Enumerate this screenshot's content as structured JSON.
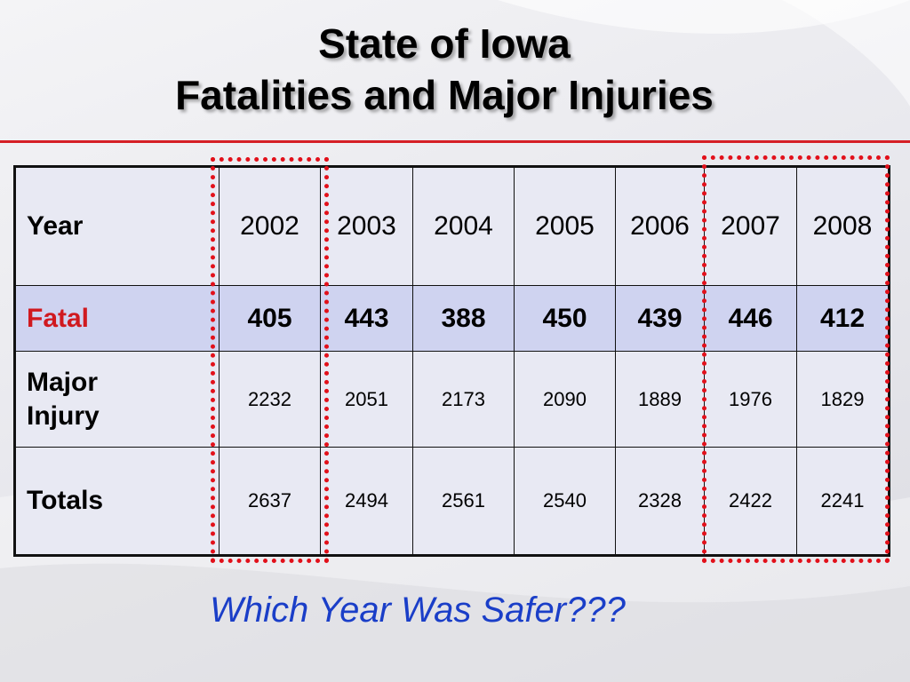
{
  "title": {
    "line1": "State of Iowa",
    "line2": "Fatalities and Major Injuries"
  },
  "table": {
    "header_label": "Year",
    "years": [
      "2002",
      "2003",
      "2004",
      "2005",
      "2006",
      "2007",
      "2008"
    ],
    "rows": {
      "fatal": {
        "label": "Fatal",
        "values": [
          "405",
          "443",
          "388",
          "450",
          "439",
          "446",
          "412"
        ]
      },
      "major_injury": {
        "label_line1": "Major",
        "label_line2": "Injury",
        "values": [
          "2232",
          "2051",
          "2173",
          "2090",
          "1889",
          "1976",
          "1829"
        ]
      },
      "totals": {
        "label": "Totals",
        "values": [
          "2637",
          "2494",
          "2561",
          "2540",
          "2328",
          "2422",
          "2241"
        ]
      }
    }
  },
  "question": "Which Year Was Safer???",
  "colors": {
    "accent_red": "#d0191f",
    "question_blue": "#1a3ec8",
    "highlight_row": "#cfd3f0",
    "cell_background": "#e8e9f3"
  }
}
